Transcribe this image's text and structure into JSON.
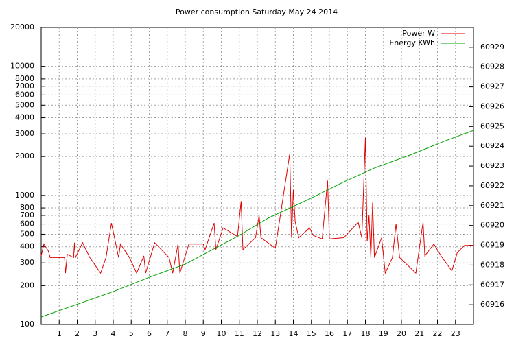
{
  "chart_data": {
    "type": "line",
    "title": "Power consumption Saturday May 24 2014",
    "log_y": true,
    "grid": true,
    "legend": "top-right",
    "xlim": [
      0,
      24
    ],
    "xticks": [
      1,
      2,
      3,
      4,
      5,
      6,
      7,
      8,
      9,
      10,
      11,
      12,
      13,
      14,
      15,
      16,
      17,
      18,
      19,
      20,
      21,
      22,
      23
    ],
    "ylim": [
      100,
      20000
    ],
    "yticks": [
      100,
      200,
      300,
      400,
      500,
      600,
      700,
      800,
      1000,
      2000,
      3000,
      4000,
      5000,
      6000,
      7000,
      8000,
      10000,
      20000
    ],
    "y2lim": [
      60915,
      60930
    ],
    "y2ticks": [
      60916,
      60917,
      60918,
      60919,
      60920,
      60921,
      60922,
      60923,
      60924,
      60925,
      60926,
      60927,
      60928,
      60929
    ],
    "series": [
      {
        "name": "Power W",
        "color": "#e00000",
        "x": [
          0,
          0.15,
          0.4,
          0.5,
          1.3,
          1.35,
          1.45,
          1.8,
          1.85,
          1.9,
          2.3,
          2.7,
          3.3,
          3.6,
          3.9,
          4.3,
          4.4,
          4.9,
          5.3,
          5.7,
          5.8,
          6.3,
          7.1,
          7.3,
          7.6,
          7.7,
          8.2,
          9.0,
          9.1,
          9.6,
          9.7,
          10.1,
          10.9,
          11.1,
          11.2,
          11.9,
          12.1,
          12.2,
          13.0,
          13.8,
          13.9,
          14.0,
          14.1,
          14.3,
          14.9,
          15.1,
          15.6,
          15.9,
          16.0,
          16.8,
          17.6,
          17.8,
          18.0,
          18.1,
          18.2,
          18.3,
          18.4,
          18.5,
          18.9,
          19.1,
          19.5,
          19.7,
          19.9,
          20.8,
          21.2,
          21.3,
          21.8,
          22.2,
          22.8,
          23.1,
          23.5,
          24
        ],
        "values": [
          340,
          420,
          370,
          330,
          330,
          250,
          350,
          330,
          430,
          330,
          430,
          330,
          250,
          330,
          610,
          330,
          420,
          330,
          250,
          340,
          250,
          430,
          330,
          250,
          420,
          250,
          420,
          420,
          380,
          610,
          380,
          560,
          480,
          900,
          380,
          470,
          700,
          470,
          390,
          2100,
          470,
          1100,
          630,
          470,
          560,
          490,
          460,
          1300,
          460,
          470,
          620,
          470,
          2800,
          440,
          700,
          330,
          880,
          330,
          470,
          250,
          330,
          600,
          330,
          250,
          620,
          340,
          420,
          340,
          260,
          360,
          410,
          410
        ]
      },
      {
        "name": "Energy KWh",
        "color": "#00a000",
        "axis": "y2",
        "x": [
          0,
          4,
          5.9,
          8,
          11,
          12.6,
          14.9,
          16.8,
          18.5,
          20.6,
          22.5,
          24
        ],
        "values": [
          60915.38,
          60916.66,
          60917.35,
          60918.05,
          60919.5,
          60920.37,
          60921.34,
          60922.2,
          60922.9,
          60923.6,
          60924.3,
          60924.8
        ]
      }
    ]
  }
}
